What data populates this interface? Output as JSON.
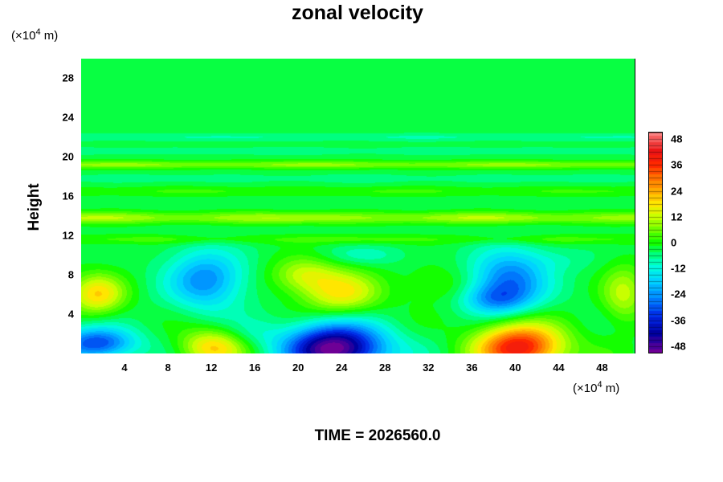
{
  "chart_data": {
    "type": "heatmap",
    "title": "zonal velocity",
    "ylabel": "Height",
    "x_unit": "(×10^4 m)",
    "y_unit": "(×10^4 m)",
    "x_unit_parts": {
      "base": "(×10",
      "exp": "4",
      "rest": " m)"
    },
    "y_unit_parts": {
      "base": "(×10",
      "exp": "4",
      "rest": " m)"
    },
    "xlim": [
      0,
      51
    ],
    "ylim": [
      0,
      30
    ],
    "x_ticks": [
      "4",
      "8",
      "12",
      "16",
      "20",
      "24",
      "28",
      "32",
      "36",
      "40",
      "44",
      "48"
    ],
    "y_ticks": [
      "4",
      "8",
      "12",
      "16",
      "20",
      "24",
      "28"
    ],
    "colorbar": {
      "range": [
        -51,
        51
      ],
      "ticks": [
        "48",
        "36",
        "24",
        "12",
        "0",
        "-12",
        "-24",
        "-36",
        "-48"
      ]
    },
    "features": [
      {
        "x": 23.5,
        "y": 0.5,
        "value": -50,
        "rx": 4.5,
        "ry": 2.5
      },
      {
        "x": 40.5,
        "y": 0.6,
        "value": 44,
        "rx": 4.0,
        "ry": 2.4
      },
      {
        "x": 12.0,
        "y": 0.6,
        "value": 22,
        "rx": 3.0,
        "ry": 1.8
      },
      {
        "x": 1.5,
        "y": 1.0,
        "value": -30,
        "rx": 3.5,
        "ry": 1.6
      },
      {
        "x": 16.0,
        "y": 2.0,
        "value": -5,
        "rx": 2.5,
        "ry": 1.5
      },
      {
        "x": 1.5,
        "y": 6.0,
        "value": 22,
        "rx": 2.5,
        "ry": 2.0
      },
      {
        "x": 11.5,
        "y": 7.5,
        "value": -22,
        "rx": 3.5,
        "ry": 3.0
      },
      {
        "x": 39.5,
        "y": 7.5,
        "value": -24,
        "rx": 3.5,
        "ry": 3.0
      },
      {
        "x": 38.0,
        "y": 5.5,
        "value": -14,
        "rx": 3.0,
        "ry": 1.5
      },
      {
        "x": 24.0,
        "y": 6.2,
        "value": 20,
        "rx": 3.5,
        "ry": 2.2
      },
      {
        "x": 20.5,
        "y": 8.0,
        "value": 14,
        "rx": 3.0,
        "ry": 1.8
      },
      {
        "x": 33.0,
        "y": 7.0,
        "value": 6,
        "rx": 3.0,
        "ry": 1.8
      },
      {
        "x": 50.0,
        "y": 6.0,
        "value": 14,
        "rx": 2.0,
        "ry": 3.0
      },
      {
        "x": 26.0,
        "y": 10.0,
        "value": -6,
        "rx": 4.0,
        "ry": 1.0
      },
      {
        "x": 44.0,
        "y": 9.5,
        "value": -4,
        "rx": 3.0,
        "ry": 1.2
      }
    ],
    "bands": [
      {
        "y": 13.8,
        "value": 14,
        "halfwidth": 0.6
      },
      {
        "y": 11.6,
        "value": 6,
        "halfwidth": 0.5
      },
      {
        "y": 16.5,
        "value": 5,
        "halfwidth": 0.5
      },
      {
        "y": 19.2,
        "value": 12,
        "halfwidth": 0.4
      },
      {
        "y": 20.6,
        "value": -4,
        "halfwidth": 0.4
      },
      {
        "y": 22.0,
        "value": -5,
        "halfwidth": 0.4
      },
      {
        "y": 17.8,
        "value": -3,
        "halfwidth": 0.5
      }
    ],
    "background_value": -3
  },
  "time_label": "TIME = 2026560.0"
}
